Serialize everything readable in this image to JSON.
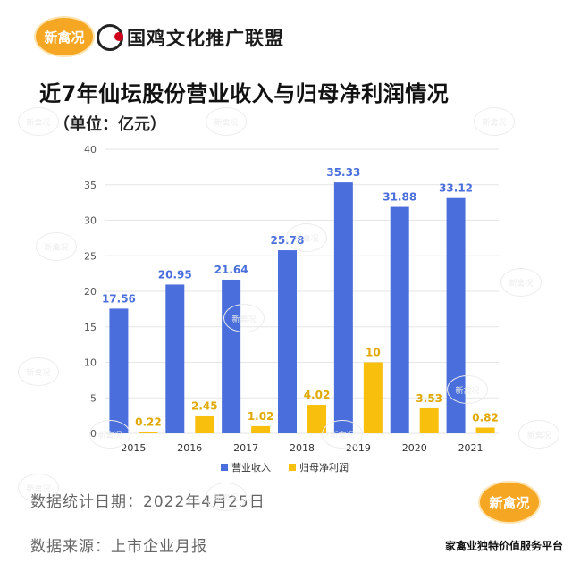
{
  "header": {
    "logo_badge": "新禽况",
    "brand_name": "国鸡文化推广联盟",
    "title": "近7年仙坛股份营业收入与归母净利润情况",
    "unit": "（单位：亿元）"
  },
  "footer": {
    "date_line": "数据统计日期：2022年4月25日",
    "source_line": "数据来源：上市企业月报",
    "badge": "新禽况",
    "slogan": "家禽业独特价值服务平台"
  },
  "watermark_text": "新禽况",
  "colors": {
    "revenue": "#4a6fdc",
    "profit": "#f8bf0c",
    "revenue_label": "#4a6fdc",
    "profit_label": "#e0a800",
    "grid": "#e6e6e6",
    "logo": "#f5a623"
  },
  "chart_data": {
    "type": "bar",
    "categories": [
      "2015",
      "2016",
      "2017",
      "2018",
      "2019",
      "2020",
      "2021"
    ],
    "series": [
      {
        "name": "营业收入",
        "values": [
          17.56,
          20.95,
          21.64,
          25.78,
          35.33,
          31.88,
          33.12
        ]
      },
      {
        "name": "归母净利润",
        "values": [
          0.22,
          2.45,
          1.02,
          4.02,
          10,
          3.53,
          0.82
        ]
      }
    ],
    "data_labels": [
      [
        "17.56",
        "20.95",
        "21.64",
        "25.78",
        "35.33",
        "31.88",
        "33.12"
      ],
      [
        "0.22",
        "2.45",
        "1.02",
        "4.02",
        "10",
        "3.53",
        "0.82"
      ]
    ],
    "title": "",
    "xlabel": "",
    "ylabel": "",
    "ylim": [
      0,
      40
    ],
    "yticks": [
      "0",
      "5",
      "10",
      "15",
      "20",
      "25",
      "30",
      "35",
      "40"
    ],
    "grid": true,
    "legend_position": "bottom"
  }
}
